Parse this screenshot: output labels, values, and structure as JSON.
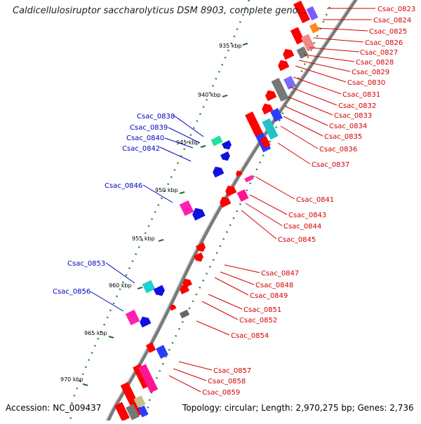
{
  "title": "Caldicellulosiruptor saccharolyticus DSM 8903, complete geno...",
  "accession": "Accession: NC_009437",
  "topology": "Topology: circular; Length: 2,970,275 bp; Genes: 2,736",
  "colors": {
    "backbone": "#8a8a8a",
    "tick": "#2a8a2a",
    "forward_label": "#d40000",
    "reverse_label": "#0000c0"
  },
  "kbp_ticks": [
    "935 kbp",
    "940 kbp",
    "945 kbp",
    "950 kbp",
    "955 kbp",
    "960 kbp",
    "965 kbp",
    "970 kbp"
  ],
  "genes_forward": [
    "Csac_0823",
    "Csac_0824",
    "Csac_0825",
    "Csac_0826",
    "Csac_0827",
    "Csac_0828",
    "Csac_0829",
    "Csac_0830",
    "Csac_0831",
    "Csac_0832",
    "Csac_0833",
    "Csac_0834",
    "Csac_0835",
    "Csac_0836",
    "Csac_0837",
    "Csac_0841",
    "Csac_0843",
    "Csac_0844",
    "Csac_0845",
    "Csac_0847",
    "Csac_0848",
    "Csac_0849",
    "Csac_0851",
    "Csac_0852",
    "Csac_0854",
    "Csac_0857",
    "Csac_0858",
    "Csac_0859"
  ],
  "genes_reverse": [
    "Csac_0838",
    "Csac_0839",
    "Csac_0840",
    "Csac_0842",
    "Csac_0846",
    "Csac_0853",
    "Csac_0856"
  ]
}
